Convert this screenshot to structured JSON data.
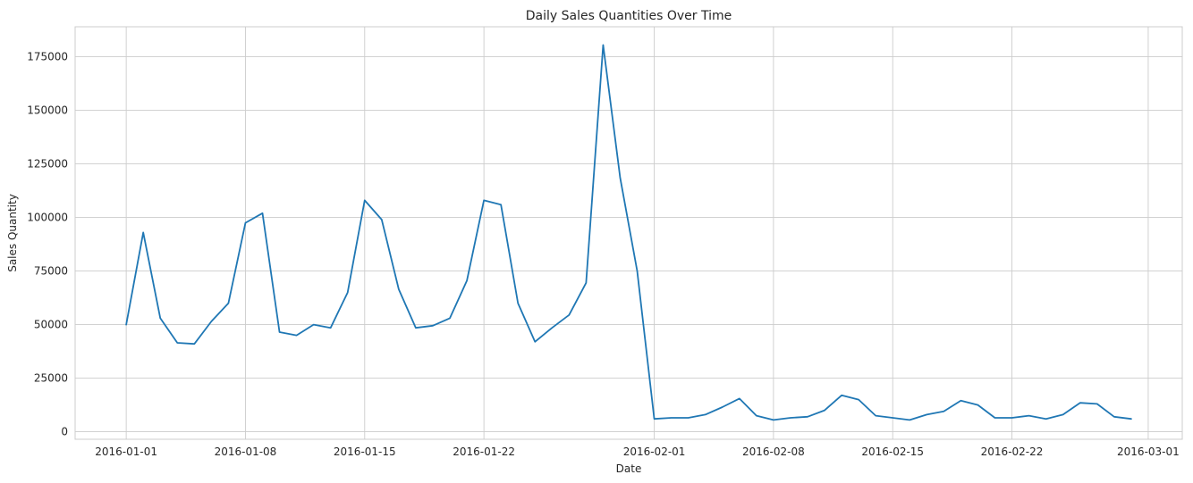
{
  "chart_data": {
    "type": "line",
    "title": "Daily Sales Quantities Over Time",
    "xlabel": "Date",
    "ylabel": "Sales Quantity",
    "line_color": "#1f77b4",
    "grid": true,
    "x_axis_type": "date",
    "xlim": [
      "2015-12-29",
      "2016-03-03"
    ],
    "ylim": [
      -3500,
      189000
    ],
    "y_ticks": [
      0,
      25000,
      50000,
      75000,
      100000,
      125000,
      150000,
      175000
    ],
    "x_ticks": [
      "2016-01-01",
      "2016-01-08",
      "2016-01-15",
      "2016-01-22",
      "2016-02-01",
      "2016-02-08",
      "2016-02-15",
      "2016-02-22",
      "2016-03-01"
    ],
    "series": [
      {
        "x": [
          "2016-01-01",
          "2016-01-02",
          "2016-01-03",
          "2016-01-04",
          "2016-01-05",
          "2016-01-06",
          "2016-01-07",
          "2016-01-08",
          "2016-01-09",
          "2016-01-10",
          "2016-01-11",
          "2016-01-12",
          "2016-01-13",
          "2016-01-14",
          "2016-01-15",
          "2016-01-16",
          "2016-01-17",
          "2016-01-18",
          "2016-01-19",
          "2016-01-20",
          "2016-01-21",
          "2016-01-22",
          "2016-01-23",
          "2016-01-24",
          "2016-01-25",
          "2016-01-26",
          "2016-01-27",
          "2016-01-28",
          "2016-01-29",
          "2016-01-30",
          "2016-01-31",
          "2016-02-01",
          "2016-02-02",
          "2016-02-03",
          "2016-02-04",
          "2016-02-05",
          "2016-02-06",
          "2016-02-07",
          "2016-02-08",
          "2016-02-09",
          "2016-02-10",
          "2016-02-11",
          "2016-02-12",
          "2016-02-13",
          "2016-02-14",
          "2016-02-15",
          "2016-02-16",
          "2016-02-17",
          "2016-02-18",
          "2016-02-19",
          "2016-02-20",
          "2016-02-21",
          "2016-02-22",
          "2016-02-23",
          "2016-02-24",
          "2016-02-25",
          "2016-02-26",
          "2016-02-27",
          "2016-02-28",
          "2016-02-29"
        ],
        "y": [
          50000,
          93000,
          53000,
          41500,
          41000,
          51500,
          60000,
          97500,
          102000,
          46500,
          45000,
          50000,
          48500,
          65000,
          108000,
          99000,
          66500,
          48500,
          49500,
          53000,
          70500,
          108000,
          106000,
          60000,
          42000,
          48500,
          54500,
          69500,
          180500,
          118500,
          75000,
          6000,
          6500,
          6500,
          8000,
          11500,
          15500,
          7500,
          5500,
          6500,
          7000,
          10000,
          17000,
          15000,
          7500,
          6500,
          5500,
          8000,
          9500,
          14500,
          12500,
          6500,
          6500,
          7500,
          6000,
          8000,
          13500,
          13000,
          7000,
          6000
        ]
      }
    ]
  }
}
